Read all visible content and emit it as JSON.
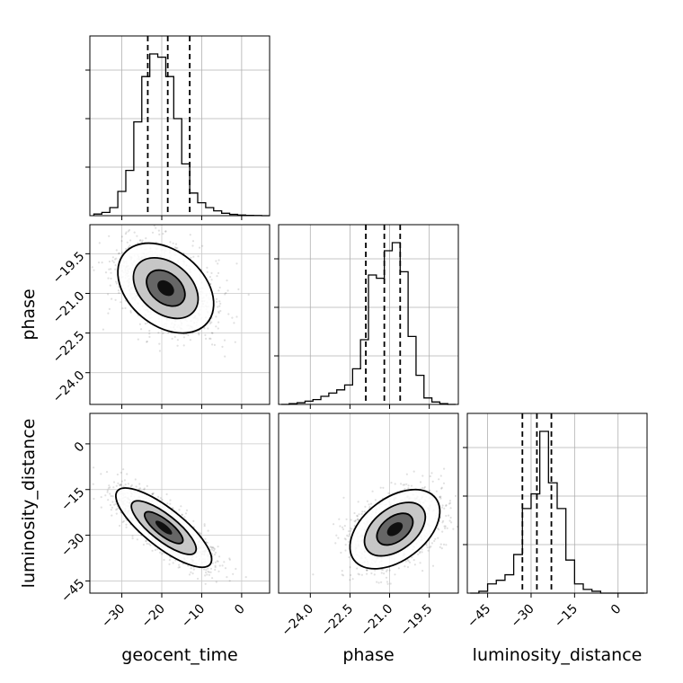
{
  "figure": {
    "type": "corner-plot",
    "parameters": [
      "geocent_time",
      "phase",
      "luminosity_distance"
    ]
  },
  "axis_labels": {
    "geocent_time": "geocent_time",
    "phase": "phase",
    "luminosity_distance": "luminosity_distance"
  },
  "chart_data": [
    {
      "panel": "hist-geocent_time",
      "type": "bar",
      "variable": "geocent_time",
      "xlim": [
        -38,
        7
      ],
      "x_ticks": [
        -30,
        -20,
        -10,
        0
      ],
      "grid": true,
      "bins": [
        -37,
        -35,
        -33,
        -31,
        -29,
        -27,
        -25,
        -23,
        -21,
        -19,
        -17,
        -15,
        -13,
        -11,
        -9,
        -7,
        -5,
        -3,
        -1,
        1,
        3,
        5,
        7
      ],
      "counts": [
        0.01,
        0.02,
        0.05,
        0.15,
        0.28,
        0.58,
        0.86,
        1.0,
        0.98,
        0.86,
        0.6,
        0.32,
        0.14,
        0.08,
        0.05,
        0.03,
        0.015,
        0.008,
        0.004,
        0.002,
        0.001,
        0.0
      ],
      "quantiles": [
        -23.5,
        -18.5,
        -13.0
      ]
    },
    {
      "panel": "scatter-geocent_time-phase",
      "type": "scatter",
      "x_variable": "geocent_time",
      "y_variable": "phase",
      "xlim": [
        -38,
        7
      ],
      "ylim": [
        -25.2,
        -18.4
      ],
      "x_ticks": [
        -30,
        -20,
        -10,
        0
      ],
      "y_ticks": [
        "-19.5",
        "-21.0",
        "-22.5",
        "-24.0"
      ],
      "center": [
        -19.0,
        -20.8
      ],
      "spread": [
        6.0,
        0.85
      ],
      "correlation": -0.35,
      "levels": 3
    },
    {
      "panel": "hist-phase",
      "type": "bar",
      "variable": "phase",
      "xlim": [
        -25.2,
        -18.4
      ],
      "x_ticks": [
        "-24.0",
        "-22.5",
        "-21.0",
        "-19.5"
      ],
      "grid": true,
      "bins": [
        -25.1,
        -24.8,
        -24.5,
        -24.2,
        -23.9,
        -23.6,
        -23.3,
        -23.0,
        -22.7,
        -22.4,
        -22.1,
        -21.8,
        -21.5,
        -21.2,
        -20.9,
        -20.6,
        -20.3,
        -20.0,
        -19.7,
        -19.4,
        -19.1,
        -18.8,
        -18.5
      ],
      "counts": [
        0.0,
        0.005,
        0.01,
        0.02,
        0.03,
        0.05,
        0.07,
        0.09,
        0.12,
        0.22,
        0.4,
        0.8,
        0.78,
        0.95,
        1.0,
        0.82,
        0.42,
        0.18,
        0.04,
        0.015,
        0.005,
        0.0
      ],
      "quantiles": [
        -21.9,
        -21.2,
        -20.6
      ]
    },
    {
      "panel": "scatter-geocent_time-luminosity_distance",
      "type": "scatter",
      "x_variable": "geocent_time",
      "y_variable": "luminosity_distance",
      "xlim": [
        -38,
        7
      ],
      "ylim": [
        -49,
        10
      ],
      "x_ticks": [
        "−30",
        "−20",
        "−10",
        "0"
      ],
      "y_ticks": [
        "0",
        "−15",
        "−30",
        "−45"
      ],
      "center": [
        -19.5,
        -27.5
      ],
      "spread": [
        6.0,
        6.5
      ],
      "correlation": -0.8,
      "levels": 3
    },
    {
      "panel": "scatter-phase-luminosity_distance",
      "type": "scatter",
      "x_variable": "phase",
      "y_variable": "luminosity_distance",
      "xlim": [
        -25.2,
        -18.4
      ],
      "ylim": [
        -49,
        10
      ],
      "x_ticks": [
        "−24.0",
        "−22.5",
        "−21.0",
        "−19.5"
      ],
      "center": [
        -20.8,
        -28.0
      ],
      "spread": [
        0.85,
        6.5
      ],
      "correlation": 0.45,
      "levels": 3
    },
    {
      "panel": "hist-luminosity_distance",
      "type": "bar",
      "variable": "luminosity_distance",
      "xlim": [
        -52,
        10
      ],
      "x_ticks": [
        "−45",
        "−30",
        "−15",
        "0"
      ],
      "grid": true,
      "bins": [
        -51,
        -48,
        -45,
        -42,
        -39,
        -36,
        -33,
        -30,
        -27,
        -24,
        -21,
        -18,
        -15,
        -12,
        -9,
        -6,
        -3,
        0,
        3,
        6,
        9
      ],
      "counts": [
        0.0,
        0.01,
        0.05,
        0.07,
        0.1,
        0.21,
        0.46,
        0.54,
        0.88,
        0.6,
        0.46,
        0.18,
        0.05,
        0.02,
        0.01,
        0.0,
        0.0,
        0.0,
        0.0,
        0.0
      ],
      "quantiles": [
        -33.0,
        -28.0,
        -23.0
      ]
    }
  ]
}
